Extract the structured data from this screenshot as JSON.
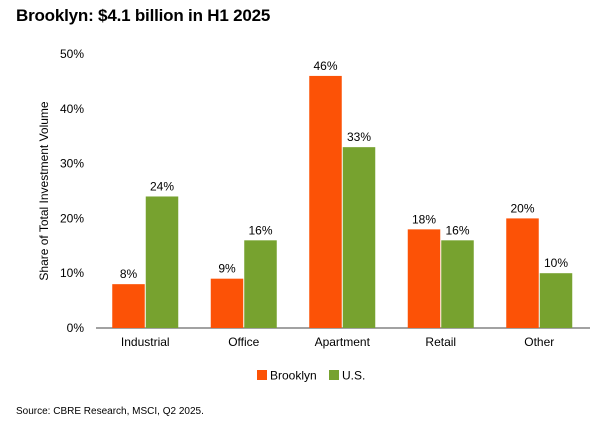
{
  "chart_data": {
    "type": "bar",
    "title": "Brooklyn: $4.1 billion in H1 2025",
    "xlabel": "",
    "ylabel": "Share of Total Investment Volume",
    "categories": [
      "Industrial",
      "Office",
      "Apartment",
      "Retail",
      "Other"
    ],
    "series": [
      {
        "name": "Brooklyn",
        "color": "#fc5206",
        "values": [
          8,
          9,
          46,
          18,
          20
        ],
        "labels": [
          "8%",
          "9%",
          "46%",
          "18%",
          "20%"
        ]
      },
      {
        "name": "U.S.",
        "color": "#77a22f",
        "values": [
          24,
          16,
          33,
          16,
          10
        ],
        "labels": [
          "24%",
          "16%",
          "33%",
          "16%",
          "10%"
        ]
      }
    ],
    "ylim": [
      0,
      50
    ],
    "yticks": [
      0,
      10,
      20,
      30,
      40,
      50
    ],
    "ytick_labels": [
      "0%",
      "10%",
      "20%",
      "30%",
      "40%",
      "50%"
    ],
    "grid": false,
    "legend_position": "bottom-center",
    "source": "Source: CBRE Research, MSCI, Q2 2025."
  }
}
